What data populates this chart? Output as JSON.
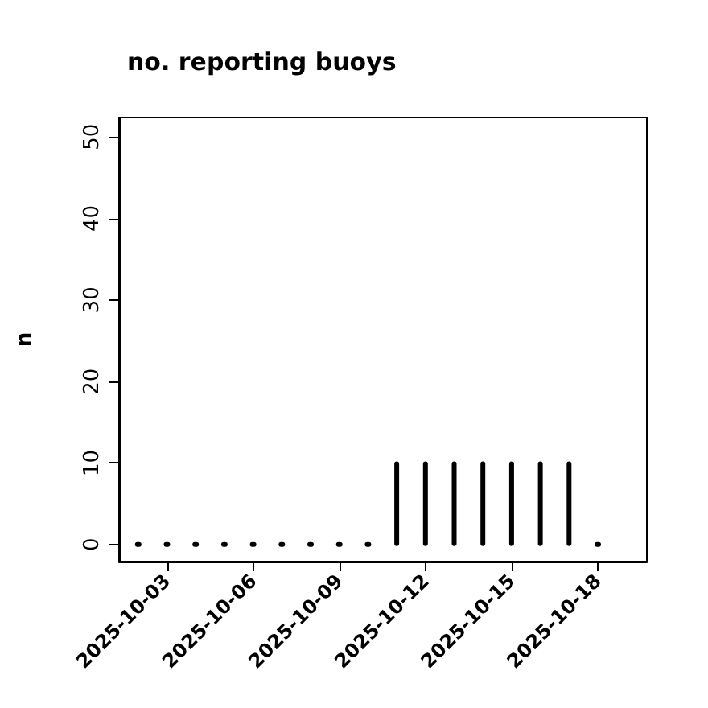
{
  "chart_data": {
    "type": "bar",
    "title": "no. reporting buoys",
    "ylabel": "n",
    "x": [
      "2025-10-02",
      "2025-10-03",
      "2025-10-04",
      "2025-10-05",
      "2025-10-06",
      "2025-10-07",
      "2025-10-08",
      "2025-10-09",
      "2025-10-10",
      "2025-10-11",
      "2025-10-12",
      "2025-10-13",
      "2025-10-14",
      "2025-10-15",
      "2025-10-16",
      "2025-10-17",
      "2025-10-18"
    ],
    "values": [
      0,
      0,
      0,
      0,
      0,
      0,
      0,
      0,
      0,
      10,
      10,
      10,
      10,
      10,
      10,
      10,
      0
    ],
    "color": "#000000",
    "xlim": [
      "2025-10-01T08:00",
      "2025-10-19T17:00"
    ],
    "xticks": [
      "2025-10-03",
      "2025-10-06",
      "2025-10-09",
      "2025-10-12",
      "2025-10-15",
      "2025-10-18"
    ],
    "ylim": [
      -2.1,
      52.4
    ],
    "yticks": [
      0,
      10,
      20,
      30,
      40,
      50
    ],
    "grid": false
  }
}
